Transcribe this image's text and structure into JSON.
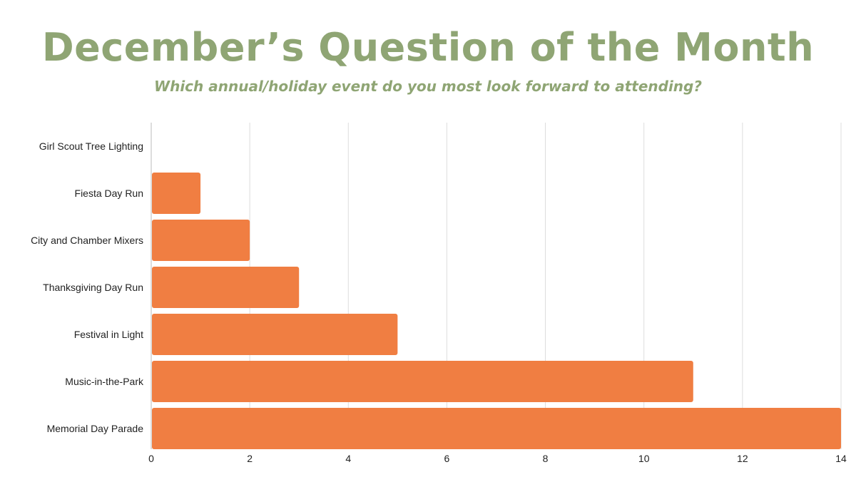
{
  "title": "December’s Question of the Month",
  "subtitle": "Which annual/holiday event do you most look forward to attending?",
  "chart_data": {
    "type": "bar",
    "orientation": "horizontal",
    "categories": [
      "Girl Scout Tree Lighting",
      "Fiesta Day Run",
      "City and Chamber Mixers",
      "Thanksgiving Day Run",
      "Festival in Light",
      "Music-in-the-Park",
      "Memorial Day Parade"
    ],
    "values": [
      0,
      1,
      2,
      3,
      5,
      11,
      14
    ],
    "xlim": [
      0,
      14
    ],
    "xticks": [
      0,
      2,
      4,
      6,
      8,
      10,
      12,
      14
    ],
    "grid": "vertical",
    "legend": "none",
    "bar_color": "#f07e42",
    "grid_color": "#dddddd",
    "axis_color": "#bbbbbb",
    "title_color": "#8fa574"
  }
}
